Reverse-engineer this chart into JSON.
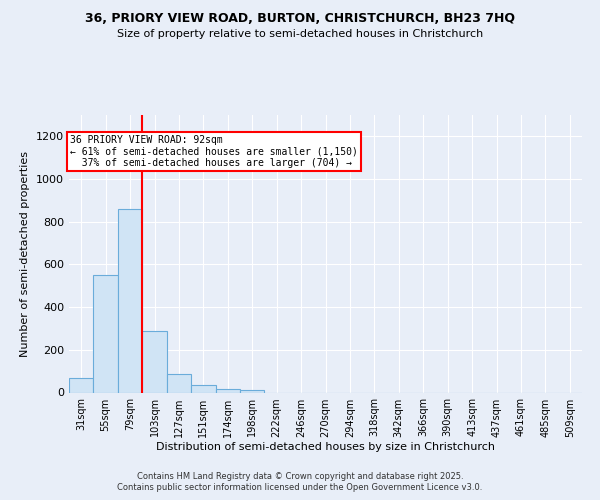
{
  "title_line1": "36, PRIORY VIEW ROAD, BURTON, CHRISTCHURCH, BH23 7HQ",
  "title_line2": "Size of property relative to semi-detached houses in Christchurch",
  "xlabel": "Distribution of semi-detached houses by size in Christchurch",
  "ylabel": "Number of semi-detached properties",
  "categories": [
    "31sqm",
    "55sqm",
    "79sqm",
    "103sqm",
    "127sqm",
    "151sqm",
    "174sqm",
    "198sqm",
    "222sqm",
    "246sqm",
    "270sqm",
    "294sqm",
    "318sqm",
    "342sqm",
    "366sqm",
    "390sqm",
    "413sqm",
    "437sqm",
    "461sqm",
    "485sqm",
    "509sqm"
  ],
  "values": [
    68,
    551,
    860,
    290,
    88,
    33,
    15,
    10,
    0,
    0,
    0,
    0,
    0,
    0,
    0,
    0,
    0,
    0,
    0,
    0,
    0
  ],
  "bar_color": "#d0e4f5",
  "bar_edge_color": "#6aacda",
  "red_line_x": 2.5,
  "property_label": "36 PRIORY VIEW ROAD: 92sqm",
  "pct_smaller": "61%",
  "pct_smaller_n": "1,150",
  "pct_larger": "37%",
  "pct_larger_n": "704",
  "ylim": [
    0,
    1300
  ],
  "yticks": [
    0,
    200,
    400,
    600,
    800,
    1000,
    1200
  ],
  "bg_color": "#e8eef8",
  "footer_line1": "Contains HM Land Registry data © Crown copyright and database right 2025.",
  "footer_line2": "Contains public sector information licensed under the Open Government Licence v3.0."
}
